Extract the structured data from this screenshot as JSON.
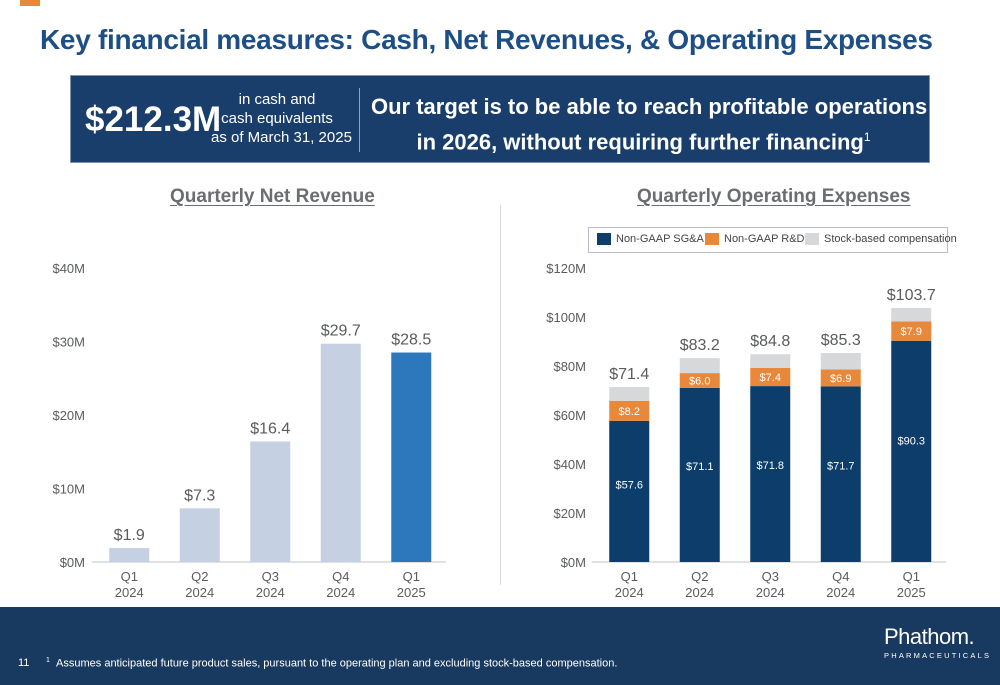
{
  "header": {
    "title": "Key financial measures: Cash, Net Revenues, & Operating Expenses"
  },
  "banner": {
    "cash_amount": "$212.3M",
    "cash_desc_lines": [
      "in cash and",
      "cash equivalents",
      "as of March 31, 2025"
    ],
    "message_line1": "Our target is to be able to reach profitable operations",
    "message_line2": "in 2026, without requiring further financing",
    "footnote_ref": "1"
  },
  "colors": {
    "title": "#1d4f86",
    "banner_bg": "#1a3e6b",
    "revenue_bar": "#c5d0e2",
    "revenue_bar_highlight": "#2d78bd",
    "sga": "#0c3d6b",
    "rnd": "#e8883a",
    "sbc": "#d7d8da",
    "footer_bg": "#193a60"
  },
  "chart_data": [
    {
      "type": "bar",
      "title": "Quarterly Net Revenue",
      "categories": [
        [
          "Q1",
          "2024"
        ],
        [
          "Q2",
          "2024"
        ],
        [
          "Q3",
          "2024"
        ],
        [
          "Q4",
          "2024"
        ],
        [
          "Q1",
          "2025"
        ]
      ],
      "values": [
        1.9,
        7.3,
        16.4,
        29.7,
        28.5
      ],
      "value_labels": [
        "$1.9",
        "$7.3",
        "$16.4",
        "$29.7",
        "$28.5"
      ],
      "highlight_index": 4,
      "ylim": [
        0,
        40
      ],
      "yticks": [
        0,
        10,
        20,
        30,
        40
      ],
      "ytick_labels": [
        "$0M",
        "$10M",
        "$20M",
        "$30M",
        "$40M"
      ],
      "grid": false
    },
    {
      "type": "bar",
      "stacked": true,
      "title": "Quarterly Operating Expenses",
      "categories": [
        [
          "Q1",
          "2024"
        ],
        [
          "Q2",
          "2024"
        ],
        [
          "Q3",
          "2024"
        ],
        [
          "Q4",
          "2024"
        ],
        [
          "Q1",
          "2025"
        ]
      ],
      "series": [
        {
          "name": "Non-GAAP SG&A",
          "values": [
            57.6,
            71.1,
            71.8,
            71.7,
            90.3
          ],
          "labels": [
            "$57.6",
            "$71.1",
            "$71.8",
            "$71.7",
            "$90.3"
          ]
        },
        {
          "name": "Non-GAAP R&D",
          "values": [
            8.2,
            6.0,
            7.4,
            6.9,
            7.9
          ],
          "labels": [
            "$8.2",
            "$6.0",
            "$7.4",
            "$6.9",
            "$7.9"
          ]
        },
        {
          "name": "Stock-based compensation",
          "values": [
            5.6,
            6.1,
            5.6,
            6.7,
            5.5
          ],
          "labels": [
            "",
            "",
            "",
            "",
            ""
          ]
        }
      ],
      "totals": [
        71.4,
        83.2,
        84.8,
        85.3,
        103.7
      ],
      "total_labels": [
        "$71.4",
        "$83.2",
        "$84.8",
        "$85.3",
        "$103.7"
      ],
      "ylim": [
        0,
        120
      ],
      "yticks": [
        0,
        20,
        40,
        60,
        80,
        100,
        120
      ],
      "ytick_labels": [
        "$0M",
        "$20M",
        "$40M",
        "$60M",
        "$80M",
        "$100M",
        "$120M"
      ],
      "legend": "top",
      "grid": false
    }
  ],
  "footer": {
    "page_number": "11",
    "footnote_mark": "1",
    "footnote": "Assumes anticipated future product sales, pursuant to the operating plan and excluding stock-based compensation.",
    "logo_name": "Phathom.",
    "logo_sub": "PHARMACEUTICALS"
  }
}
